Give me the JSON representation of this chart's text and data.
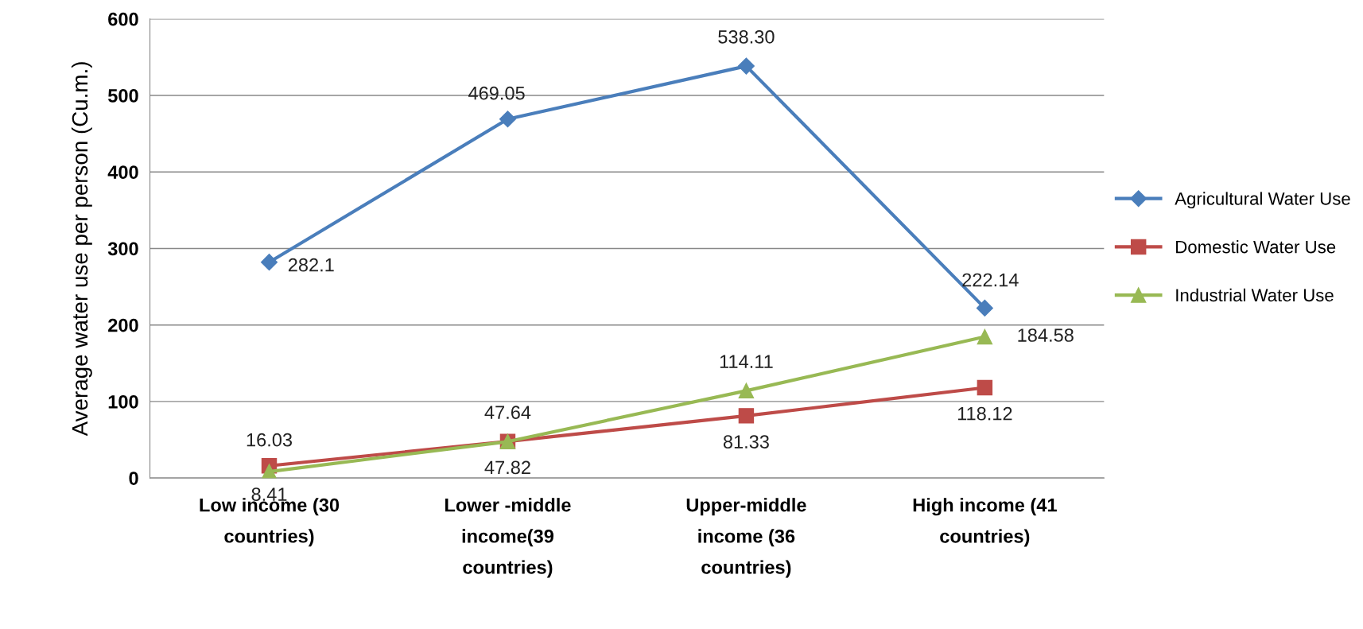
{
  "chart_data": {
    "type": "line",
    "ylabel": "Average water use per person (Cu.m.)",
    "categories": [
      "Low income (30 countries)",
      "Lower -middle income(39 countries)",
      "Upper-middle income (36 countries)",
      "High income (41 countries)"
    ],
    "series": [
      {
        "name": "Agricultural Water Use",
        "color": "#4a7ebb",
        "marker": "diamond",
        "values": [
          282.1,
          469.05,
          538.3,
          222.14
        ],
        "value_labels": [
          "282.1",
          "469.05",
          "538.30",
          "222.14"
        ]
      },
      {
        "name": "Domestic Water Use",
        "color": "#be4b48",
        "marker": "square",
        "values": [
          16.03,
          47.82,
          81.33,
          118.12
        ],
        "value_labels": [
          "16.03",
          "47.82",
          "81.33",
          "118.12"
        ]
      },
      {
        "name": "Industrial Water Use",
        "color": "#98b954",
        "marker": "triangle",
        "values": [
          8.41,
          47.64,
          114.11,
          184.58
        ],
        "value_labels": [
          "8.41",
          "47.64",
          "114.11",
          "184.58"
        ]
      }
    ],
    "ylim": [
      0,
      600
    ],
    "yticks": [
      0,
      100,
      200,
      300,
      400,
      500,
      600
    ],
    "grid": "y",
    "legend": "right",
    "line_style": "solid"
  }
}
